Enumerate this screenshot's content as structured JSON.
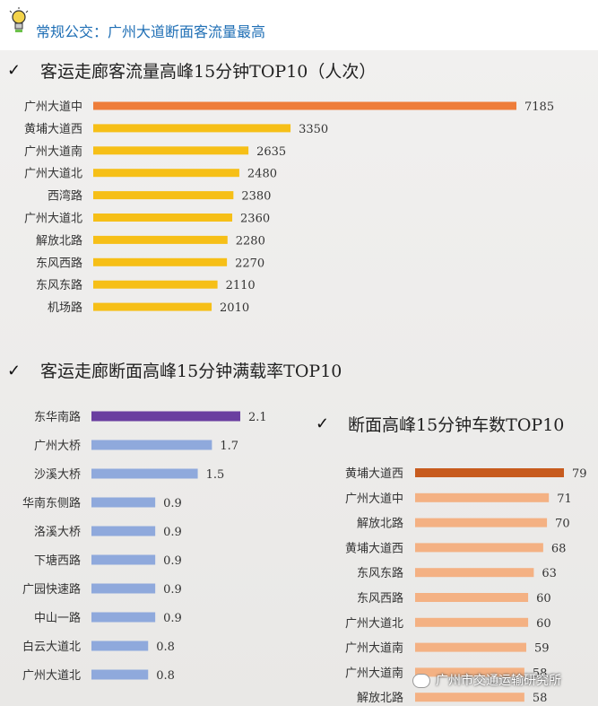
{
  "header": {
    "title": "常规公交：广州大道断面客流量最高"
  },
  "charts": [
    {
      "id": "c1",
      "title": "客运走廊客流量高峰15分钟TOP10（人次）",
      "type": "bar",
      "categories": [
        "广州大道中",
        "黄埔大道西",
        "广州大道南",
        "广州大道北",
        "西湾路",
        "广州大道北",
        "解放北路",
        "东风西路",
        "东风东路",
        "机场路"
      ],
      "values": [
        7185,
        3350,
        2635,
        2480,
        2380,
        2360,
        2280,
        2270,
        2110,
        2010
      ],
      "colors": [
        "#ee7d3a",
        "#f6bf17",
        "#f6bf17",
        "#f6bf17",
        "#f6bf17",
        "#f6bf17",
        "#f6bf17",
        "#f6bf17",
        "#f6bf17",
        "#f6bf17"
      ]
    },
    {
      "id": "c2",
      "title": "客运走廊断面高峰15分钟满载率TOP10",
      "type": "bar",
      "categories": [
        "东华南路",
        "广州大桥",
        "沙溪大桥",
        "华南东侧路",
        "洛溪大桥",
        "下塘西路",
        "广园快速路",
        "中山一路",
        "白云大道北",
        "广州大道北"
      ],
      "values": [
        2.1,
        1.7,
        1.5,
        0.9,
        0.9,
        0.9,
        0.9,
        0.9,
        0.8,
        0.8
      ],
      "labels": [
        "2.1",
        "1.7",
        "1.5",
        "0.9",
        "0.9",
        "0.9",
        "0.9",
        "0.9",
        "0.8",
        "0.8"
      ],
      "colors": [
        "#6a3fa0",
        "#8fa9dc",
        "#8fa9dc",
        "#8fa9dc",
        "#8fa9dc",
        "#8fa9dc",
        "#8fa9dc",
        "#8fa9dc",
        "#8fa9dc",
        "#8fa9dc"
      ]
    },
    {
      "id": "c3",
      "title": "断面高峰15分钟车数TOP10",
      "type": "bar",
      "categories": [
        "黄埔大道西",
        "广州大道中",
        "解放北路",
        "黄埔大道西",
        "东风东路",
        "东风西路",
        "广州大道北",
        "广州大道南",
        "广州大道南",
        "解放北路"
      ],
      "values": [
        79,
        71,
        70,
        68,
        63,
        60,
        60,
        59,
        58,
        58
      ],
      "colors": [
        "#c75b1e",
        "#f4b183",
        "#f4b183",
        "#f4b183",
        "#f4b183",
        "#f4b183",
        "#f4b183",
        "#f4b183",
        "#f4b183",
        "#f4b183"
      ]
    }
  ],
  "watermark": {
    "text": "广州市交通运输研究所"
  }
}
